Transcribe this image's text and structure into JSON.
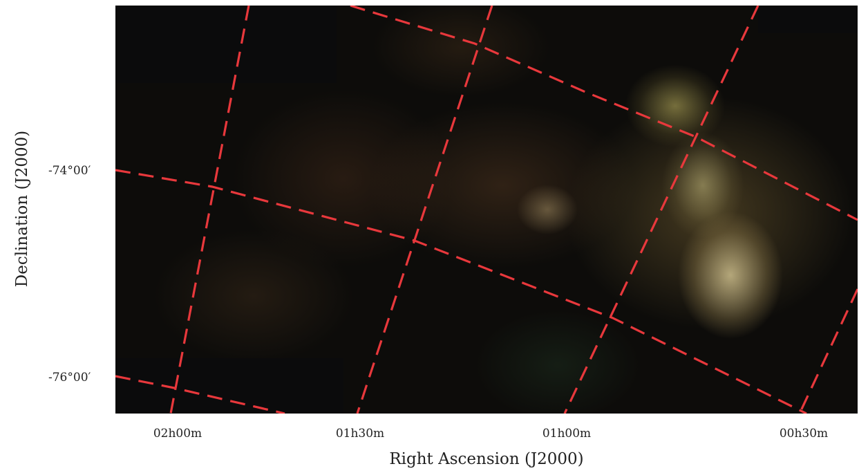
{
  "figure": {
    "axis_labels": {
      "x": "Right Ascension (J2000)",
      "y": "Declination (J2000)"
    },
    "ra_ticks": [
      "02h00m",
      "01h30m",
      "01h00m",
      "00h30m"
    ],
    "dec_ticks": [
      "-74°00′",
      "-76°00′"
    ],
    "grid_color": "#e8383c"
  }
}
